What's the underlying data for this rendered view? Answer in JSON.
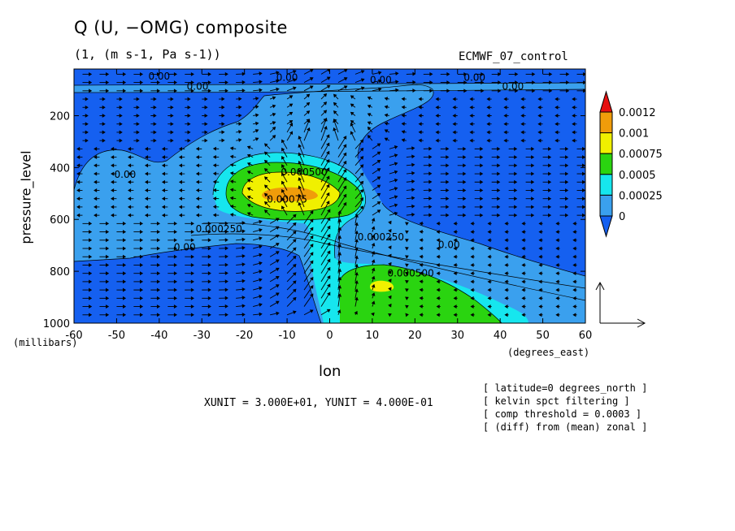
{
  "title": "Q (U, −OMG) composite",
  "subtitle": "(1, (m s-1, Pa s-1))",
  "dataset": "ECMWF_07_control",
  "notes": [
    "[ latitude=0 degrees_north ]",
    "[ kelvin spct filtering ]",
    "[ comp threshold = 0.0003 ]",
    "[ (diff) from (mean) zonal ]"
  ],
  "vector_scale": "XUNIT = 3.000E+01, YUNIT = 4.000E-01",
  "colors": {
    "level_0": "#1560f0",
    "level_1": "#3aa0ee",
    "level_2": "#16e6ee",
    "level_3": "#2ad410",
    "level_4": "#f0f000",
    "level_5": "#f09c0a",
    "level_6": "#e61010"
  },
  "chart_data": {
    "type": "heatmap",
    "subtype": "filled contour with vectors",
    "xlabel": "lon",
    "x_units": "(degrees_east)",
    "ylabel": "pressure_level",
    "y_units": "(millibars)",
    "xlim": [
      -60,
      60
    ],
    "ylim": [
      1000,
      20
    ],
    "y_reversed": true,
    "x_ticks": [
      -60,
      -50,
      -40,
      -30,
      -20,
      -10,
      0,
      10,
      20,
      30,
      40,
      50,
      60
    ],
    "y_ticks": [
      200,
      400,
      600,
      800,
      1000
    ],
    "color_levels": [
      "0",
      "0.00025",
      "0.0005",
      "0.00075",
      "0.001",
      "0.0012"
    ],
    "contour_labels": [
      {
        "text": "0.00",
        "lon": -40,
        "p": 60
      },
      {
        "text": "0.00",
        "lon": -10,
        "p": 65
      },
      {
        "text": "0.00",
        "lon": 12,
        "p": 75
      },
      {
        "text": "0.00",
        "lon": 34,
        "p": 65
      },
      {
        "text": "0.00",
        "lon": -31,
        "p": 100
      },
      {
        "text": "0.00",
        "lon": 43,
        "p": 100
      },
      {
        "text": "0.00",
        "lon": -48,
        "p": 440
      },
      {
        "text": "0.000500",
        "lon": -6,
        "p": 430
      },
      {
        "text": "0.00075",
        "lon": -10,
        "p": 535
      },
      {
        "text": "0.000250",
        "lon": -26,
        "p": 650
      },
      {
        "text": "0.00",
        "lon": -34,
        "p": 720
      },
      {
        "text": "0.000250",
        "lon": 12,
        "p": 680
      },
      {
        "text": "0.00",
        "lon": 28,
        "p": 710
      },
      {
        "text": "0.000500",
        "lon": 19,
        "p": 820
      }
    ],
    "features": [
      {
        "type": "max",
        "lon": -10,
        "p": 490,
        "level": "0.001"
      },
      {
        "type": "max",
        "lon": 12,
        "p": 840,
        "level": "0.00075"
      }
    ]
  }
}
